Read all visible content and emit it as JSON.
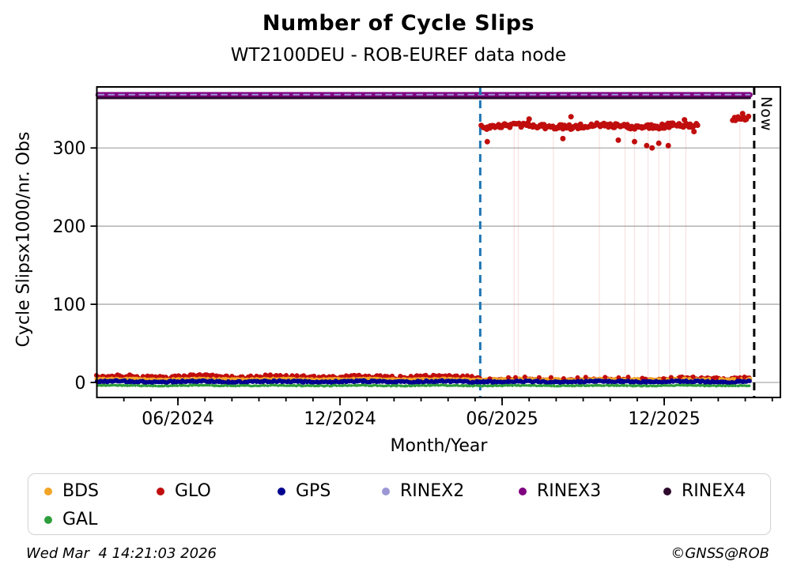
{
  "title": "Number of Cycle Slips",
  "subtitle": "WT2100DEU - ROB-EUREF data node",
  "footer": {
    "timestamp": "Wed Mar  4 14:21:03 2026",
    "credit": "©GNSS@ROB"
  },
  "chart_data": {
    "type": "scatter",
    "title": "Number of Cycle Slips",
    "subtitle": "WT2100DEU - ROB-EUREF data node",
    "xlabel": "Month/Year",
    "ylabel": "Cycle Slipsx1000/nr. Obs",
    "now_label": "Now",
    "grid": true,
    "grid_color": "#ababab",
    "x_axis": {
      "start_month": "03/2024",
      "end_month": "04/2026",
      "major_ticks": [
        {
          "t": 3,
          "label": "06/2024"
        },
        {
          "t": 9,
          "label": "12/2024"
        },
        {
          "t": 15,
          "label": "06/2025"
        },
        {
          "t": 21,
          "label": "12/2025"
        }
      ],
      "minor_ticks_t": [
        1,
        2,
        3,
        4,
        5,
        6,
        7,
        8,
        9,
        10,
        11,
        12,
        13,
        14,
        15,
        16,
        17,
        18,
        19,
        20,
        21,
        22,
        23,
        24,
        25
      ]
    },
    "y_axis": {
      "min": -10,
      "max": 378,
      "ticks": [
        0,
        100,
        200,
        300
      ]
    },
    "vlines": [
      {
        "name": "glo-change-line",
        "t": 14.19,
        "color": "#1F77B4",
        "width": 3,
        "dash": "10 7"
      },
      {
        "name": "now-line",
        "t": 24.33,
        "color": "#000000",
        "width": 3,
        "dash": "10 7"
      }
    ],
    "hlines": [
      {
        "name": "RINEX3",
        "value": 368,
        "t0": 0.05,
        "t1": 24.17,
        "color": "#800080",
        "width": 7,
        "dash": null
      },
      {
        "name": "RINEX2",
        "value": 368.3,
        "t0": 0.05,
        "t1": 24.17,
        "color": "#9B97D4",
        "width": 2,
        "dash": "7 6"
      },
      {
        "name": "RINEX4",
        "value": 364,
        "t0": 0.05,
        "t1": 24.17,
        "color": "#2E0A2E",
        "width": 3,
        "dash": null
      }
    ],
    "drop_lines": {
      "color": "#D06060",
      "opacity": 0.18,
      "width": 1.2,
      "v_top": 332,
      "v_bottom": -6,
      "t_values": [
        15.45,
        15.6,
        16.9,
        18.6,
        19.55,
        19.9,
        20.4,
        20.8,
        21.2,
        21.8,
        23.8
      ]
    },
    "series": [
      {
        "name": "GLO-high",
        "color": "#C00D0D",
        "r": 3.5,
        "segments": [
          {
            "t0": 14.25,
            "t1": 22.25,
            "step": 0.055,
            "center": 328,
            "spread": 4
          },
          {
            "t0": 23.55,
            "t1": 24.15,
            "step": 0.05,
            "center": 338,
            "spread": 3
          }
        ],
        "outliers": [
          [
            14.45,
            308
          ],
          [
            16.0,
            337
          ],
          [
            17.25,
            312
          ],
          [
            17.55,
            340
          ],
          [
            19.3,
            310
          ],
          [
            19.9,
            308
          ],
          [
            20.35,
            303
          ],
          [
            20.55,
            300
          ],
          [
            20.8,
            306
          ],
          [
            21.15,
            303
          ],
          [
            21.55,
            331
          ],
          [
            21.75,
            336
          ],
          [
            22.1,
            321
          ],
          [
            23.9,
            344
          ]
        ]
      },
      {
        "name": "GLO-low",
        "color": "#C00D0D",
        "r": 3,
        "segments": [
          {
            "t0": 0,
            "t1": 14.2,
            "step": 0.05,
            "center": 7,
            "spread": 3
          },
          {
            "t0": 14.2,
            "t1": 21.5,
            "step": 0.05,
            "center": 3.5,
            "spread": 1.2
          },
          {
            "t0": 21.5,
            "t1": 24.2,
            "step": 0.05,
            "center": 5,
            "spread": 2
          }
        ]
      },
      {
        "name": "BDS",
        "color": "#F2A426",
        "r": 2.6,
        "segments": [
          {
            "t0": 0,
            "t1": 24.2,
            "step": 0.06,
            "center": 4,
            "spread": 1
          }
        ]
      },
      {
        "name": "GLO-bumps",
        "color": "#C00D0D",
        "r": 3,
        "segments": [
          {
            "t0": 14.6,
            "t1": 24.2,
            "step": 0.45,
            "center": 6,
            "spread": 1.5
          }
        ]
      },
      {
        "name": "GPS",
        "color": "#000090",
        "r": 2.8,
        "segments": [
          {
            "t0": 0,
            "t1": 24.2,
            "step": 0.05,
            "center": 1,
            "spread": 1.6
          }
        ]
      },
      {
        "name": "GAL",
        "color": "#2E9E3C",
        "r": 1.7,
        "segments": [
          {
            "t0": 0,
            "t1": 24.2,
            "step": 0.05,
            "center": -4,
            "spread": 0.8
          }
        ]
      }
    ],
    "legend": {
      "position": "bottom",
      "items": [
        {
          "label": "BDS",
          "color": "#F2A426"
        },
        {
          "label": "GLO",
          "color": "#C00D0D"
        },
        {
          "label": "GPS",
          "color": "#000090"
        },
        {
          "label": "RINEX2",
          "color": "#9B97D4"
        },
        {
          "label": "RINEX3",
          "color": "#800080"
        },
        {
          "label": "RINEX4",
          "color": "#2E0A2E"
        },
        {
          "label": "GAL",
          "color": "#2E9E3C"
        }
      ]
    }
  }
}
